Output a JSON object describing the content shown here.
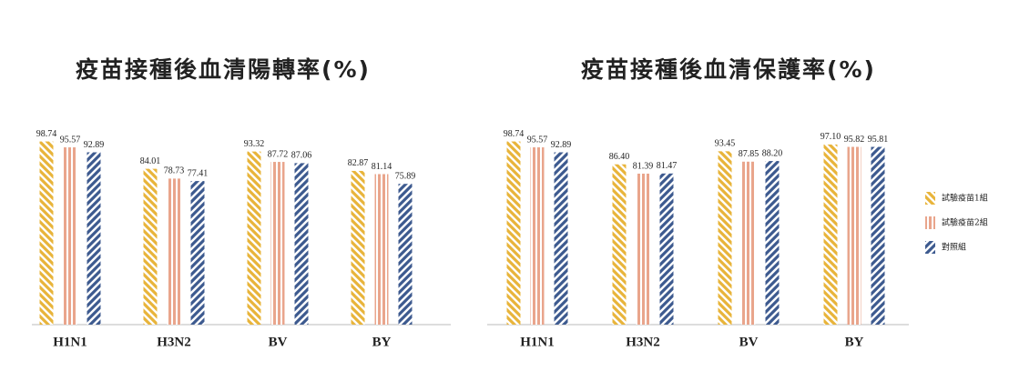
{
  "chart_data": [
    {
      "type": "bar",
      "title": "疫苗接種後血清陽轉率(%)",
      "categories": [
        "H1N1",
        "H3N2",
        "BV",
        "BY"
      ],
      "series": [
        {
          "color": "#e8b43a",
          "hatch": "backslash",
          "values": [
            98.74,
            84.01,
            93.32,
            82.87
          ],
          "value_labels": [
            "98.74",
            "84.01",
            "93.32",
            "82.87"
          ]
        },
        {
          "color": "#e9a58c",
          "hatch": "vertical",
          "values": [
            95.57,
            78.73,
            87.72,
            81.14
          ],
          "value_labels": [
            "95.57",
            "78.73",
            "87.72",
            "81.14"
          ]
        },
        {
          "color": "#3d5a8f",
          "hatch": "slash",
          "values": [
            92.89,
            77.41,
            87.06,
            75.89
          ],
          "value_labels": [
            "92.89",
            "77.41",
            "87.06",
            "75.89"
          ]
        }
      ],
      "ylim": [
        0,
        100
      ]
    },
    {
      "type": "bar",
      "title": "疫苗接種後血清保護率(%)",
      "categories": [
        "H1N1",
        "H3N2",
        "BV",
        "BY"
      ],
      "series": [
        {
          "name": "試驗疫苗1組",
          "color": "#e8b43a",
          "hatch": "backslash",
          "values": [
            98.74,
            86.4,
            93.45,
            97.1
          ],
          "value_labels": [
            "98.74",
            "86.40",
            "93.45",
            "97.10"
          ]
        },
        {
          "name": "試驗疫苗2組",
          "color": "#e9a58c",
          "hatch": "vertical",
          "values": [
            95.57,
            81.39,
            87.85,
            95.82
          ],
          "value_labels": [
            "95.57",
            "81.39",
            "87.85",
            "95.82"
          ]
        },
        {
          "name": "對照組",
          "color": "#3d5a8f",
          "hatch": "slash",
          "values": [
            92.89,
            81.47,
            88.2,
            95.81
          ],
          "value_labels": [
            "92.89",
            "81.47",
            "88.20",
            "95.81"
          ]
        }
      ],
      "ylim": [
        0,
        100
      ],
      "legend": "right"
    }
  ]
}
